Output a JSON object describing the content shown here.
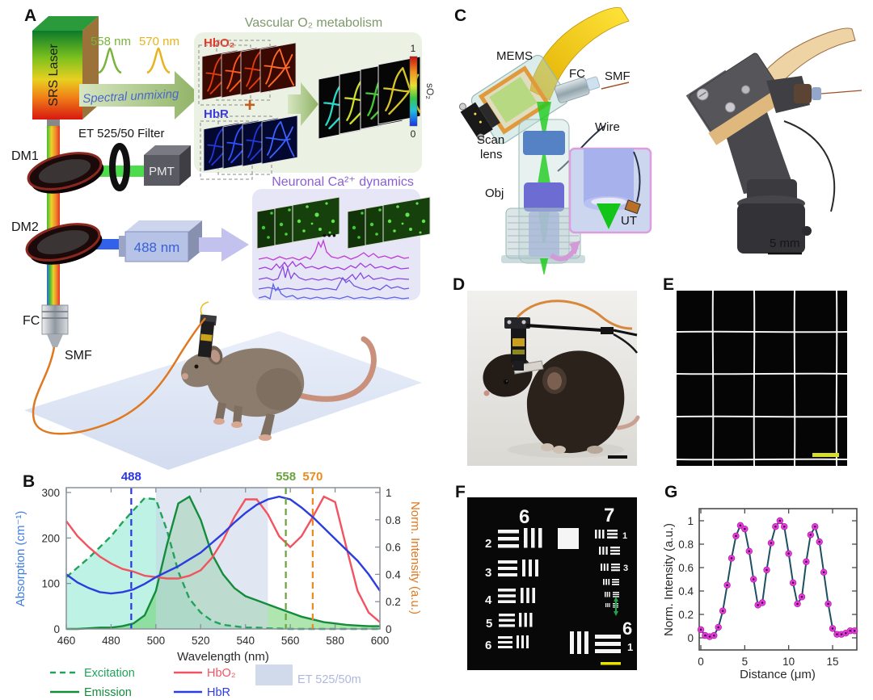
{
  "panel_a": {
    "label": "A",
    "srs_laser": "SRS Laser",
    "wl_558": "558 nm",
    "wl_570": "570 nm",
    "spectral_unmixing": "Spectral unmixing",
    "filter": "ET 525/50 Filter",
    "pmt": "PMT",
    "dm1": "DM1",
    "dm2": "DM2",
    "laser_488": "488 nm",
    "fc": "FC",
    "smf": "SMF",
    "vascular": {
      "title": "Vascular O₂  metabolism",
      "hbo2": "HbO₂",
      "plus": "+",
      "hbr": "HbR",
      "cb_top": "1",
      "cb_bottom": "0",
      "cb_label": "sO₂"
    },
    "neuronal": {
      "title": "Neuronal Ca²⁺ dynamics",
      "dots": "•••"
    },
    "colors": {
      "hbo2": "#e23828",
      "hbr": "#3a3ae0",
      "vascular_title": "#7d9a6b",
      "neuronal_title": "#8a5fd6",
      "wl558": "#79b33c",
      "wl570": "#e9b31c",
      "unmixing_text": "#4a66cc",
      "laser488_text": "#3a60d8"
    }
  },
  "panel_c": {
    "label": "C",
    "mems": "MEMS",
    "fc": "FC",
    "smf": "SMF",
    "wire": "Wire",
    "scan1": "Scan",
    "scan2": "lens",
    "obj": "Obj",
    "ut": "UT",
    "scale": "5 mm"
  },
  "panel_d": {
    "label": "D"
  },
  "panel_e": {
    "label": "E"
  },
  "panel_f": {
    "label": "F",
    "top_left_group": "6",
    "top_right_group": "7",
    "left_numbers": [
      "2",
      "3",
      "4",
      "5",
      "6"
    ],
    "right_number_1": "1",
    "right_number_3": "3",
    "bottom_group": "6",
    "bottom_number": "1"
  },
  "chart_data": [
    {
      "id": "absorption-spectra",
      "panel_label": "B",
      "type": "line",
      "xlabel": "Wavelength (nm)",
      "ylabel_left": "Absorption (cm⁻¹)",
      "ylabel_right": "Norm. Intensity (a.u.)",
      "xlim": [
        460,
        600
      ],
      "ylim_left": [
        0,
        300
      ],
      "ylim_right": [
        0,
        1
      ],
      "x_ticks": [
        460,
        480,
        500,
        520,
        540,
        560,
        580,
        600
      ],
      "y_ticks_left": [
        0,
        100,
        200,
        300
      ],
      "y_ticks_right": [
        0,
        0.2,
        0.4,
        0.6,
        0.8,
        1
      ],
      "x_start": 460,
      "x_step": 5,
      "band": {
        "label": "ET 525/50m",
        "from": 500,
        "to": 550,
        "color": "#c9d3e8",
        "text_color": "#aeb8dc"
      },
      "vlines": [
        {
          "x": 489,
          "label": "488",
          "color": "#2936e6"
        },
        {
          "x": 558,
          "label": "558",
          "color": "#6aa33c"
        },
        {
          "x": 570,
          "label": "570",
          "color": "#ec8a1e"
        }
      ],
      "series": [
        {
          "name": "Excitation",
          "color": "#21a35c",
          "dashed": true,
          "fill": "rgba(110,226,196,0.45)",
          "values": [
            0.38,
            0.45,
            0.52,
            0.6,
            0.68,
            0.78,
            0.87,
            0.96,
            0.95,
            0.72,
            0.42,
            0.22,
            0.12,
            0.06,
            0.03,
            0.02,
            0.01,
            0.01,
            0.005,
            0.003,
            0,
            0,
            0,
            0,
            0,
            0,
            0,
            0,
            0
          ]
        },
        {
          "name": "Emission",
          "color": "#148c3c",
          "dashed": false,
          "fill": "rgba(96,204,96,0.5)",
          "values": [
            0,
            0,
            0.005,
            0.01,
            0.01,
            0.02,
            0.04,
            0.1,
            0.28,
            0.62,
            0.92,
            0.97,
            0.8,
            0.55,
            0.4,
            0.3,
            0.24,
            0.21,
            0.18,
            0.15,
            0.12,
            0.09,
            0.07,
            0.05,
            0.04,
            0.03,
            0.025,
            0.02,
            0.02
          ]
        },
        {
          "name": "HbO₂",
          "color": "#f25360",
          "dashed": false,
          "values": [
            0.79,
            0.68,
            0.6,
            0.53,
            0.48,
            0.44,
            0.42,
            0.39,
            0.38,
            0.37,
            0.37,
            0.39,
            0.43,
            0.52,
            0.65,
            0.82,
            0.95,
            0.95,
            0.84,
            0.68,
            0.6,
            0.68,
            0.82,
            0.97,
            0.93,
            0.6,
            0.28,
            0.12,
            0.05
          ]
        },
        {
          "name": "HbR",
          "color": "#2b3de0",
          "dashed": false,
          "values": [
            0.4,
            0.34,
            0.3,
            0.27,
            0.26,
            0.27,
            0.29,
            0.33,
            0.38,
            0.42,
            0.46,
            0.51,
            0.56,
            0.63,
            0.7,
            0.78,
            0.85,
            0.91,
            0.95,
            0.97,
            0.95,
            0.89,
            0.82,
            0.74,
            0.66,
            0.58,
            0.5,
            0.4,
            0.28
          ]
        }
      ],
      "legend_position": "below"
    },
    {
      "id": "line-profile",
      "panel_label": "G",
      "type": "scatter-line",
      "xlabel": "Distance (μm)",
      "ylabel": "Norm. Intensity (a.u.)",
      "x_ticks": [
        0,
        5,
        10,
        15
      ],
      "y_ticks": [
        0,
        0.2,
        0.4,
        0.6,
        0.8,
        1
      ],
      "xlim": [
        0,
        17.5
      ],
      "ylim": [
        0,
        1
      ],
      "x_start": 0,
      "x_step": 0.5,
      "line_color": "#1d4f63",
      "marker_color": "#ea3cdc",
      "values": [
        0.07,
        0.02,
        0.01,
        0.02,
        0.09,
        0.23,
        0.45,
        0.68,
        0.87,
        0.96,
        0.93,
        0.74,
        0.5,
        0.28,
        0.3,
        0.58,
        0.81,
        0.95,
        1.0,
        0.95,
        0.72,
        0.47,
        0.29,
        0.35,
        0.65,
        0.88,
        0.95,
        0.82,
        0.56,
        0.29,
        0.08,
        0.03,
        0.03,
        0.04,
        0.06,
        0.06
      ]
    }
  ]
}
